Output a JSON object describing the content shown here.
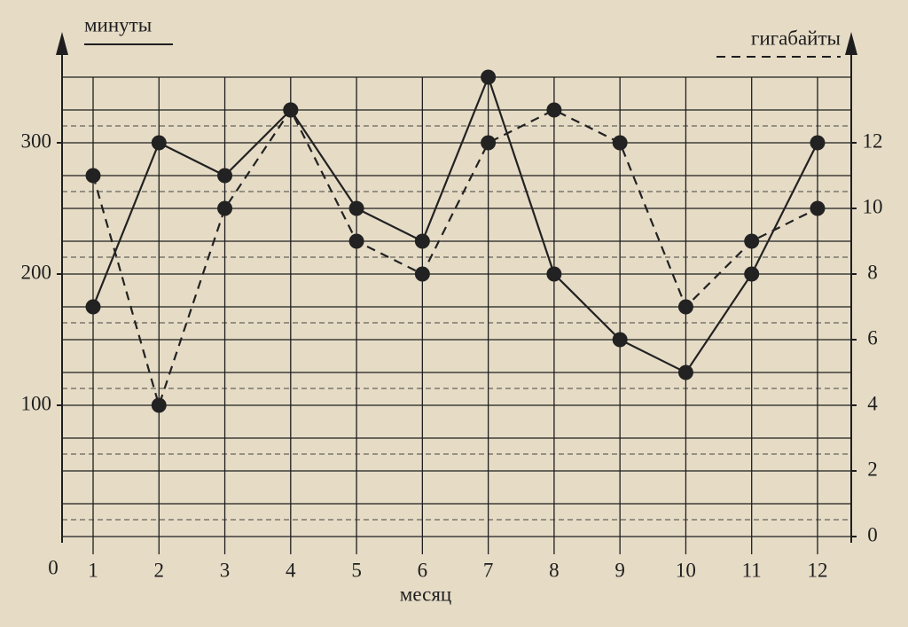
{
  "chart_data": {
    "type": "line",
    "x_label": "месяц",
    "origin_label": "0",
    "categories": [
      "1",
      "2",
      "3",
      "4",
      "5",
      "6",
      "7",
      "8",
      "9",
      "10",
      "11",
      "12"
    ],
    "series": [
      {
        "name": "минуты",
        "color": "#222222",
        "style": "solid",
        "axis": "y",
        "values": [
          175,
          300,
          275,
          325,
          250,
          225,
          350,
          200,
          150,
          125,
          200,
          300
        ]
      },
      {
        "name": "гигабайты",
        "color": "#222222",
        "style": "dashed",
        "axis": "y2",
        "values": [
          11,
          4,
          10,
          13,
          9,
          8,
          12,
          13,
          12,
          7,
          9,
          10
        ]
      }
    ],
    "ylim": [
      0,
      350
    ],
    "yticks": [
      100,
      200,
      300
    ],
    "ygrid": [
      0,
      25,
      50,
      75,
      100,
      125,
      150,
      175,
      200,
      225,
      250,
      275,
      300,
      325,
      350
    ],
    "y2lim": [
      0,
      14
    ],
    "y2ticks": [
      0,
      2,
      4,
      6,
      8,
      10,
      12
    ],
    "y2grid": [
      1,
      3,
      5,
      7,
      9,
      11,
      13
    ],
    "grid": true
  }
}
